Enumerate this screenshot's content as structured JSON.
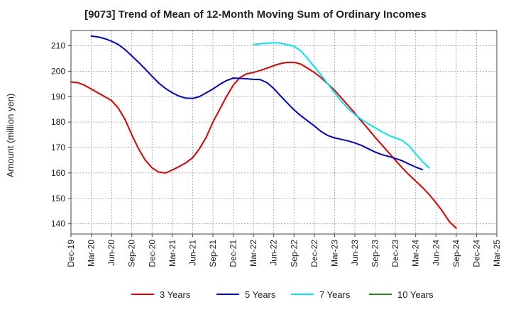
{
  "chart_data": {
    "type": "line",
    "title": "[9073]  Trend of Mean of 12-Month Moving Sum of Ordinary Incomes",
    "xlabel": "",
    "ylabel": "Amount (million yen)",
    "ylim": [
      136,
      216
    ],
    "yticks": [
      140,
      150,
      160,
      170,
      180,
      190,
      200,
      210
    ],
    "x_tick_labels": [
      "Dec-19",
      "Mar-20",
      "Jun-20",
      "Sep-20",
      "Dec-20",
      "Mar-21",
      "Jun-21",
      "Sep-21",
      "Dec-21",
      "Mar-22",
      "Jun-22",
      "Sep-22",
      "Dec-22",
      "Mar-23",
      "Jun-23",
      "Sep-23",
      "Dec-23",
      "Mar-24",
      "Jun-24",
      "Sep-24",
      "Dec-24",
      "Mar-25"
    ],
    "grid": true,
    "legend_position": "bottom",
    "series": [
      {
        "name": "3 Years",
        "color": "#dd0000",
        "start_index": 0,
        "values": [
          195.8,
          195.5,
          194.5,
          193.0,
          191.5,
          190.0,
          188.5,
          185.5,
          181.0,
          175.0,
          169.5,
          165.0,
          162.0,
          160.3,
          160.0,
          161.2,
          162.5,
          164.0,
          166.0,
          169.5,
          174.0,
          180.0,
          185.0,
          190.0,
          194.5,
          197.5,
          199.0,
          199.5,
          200.3,
          201.2,
          202.2,
          203.0,
          203.5,
          203.5,
          202.8,
          201.2,
          199.5,
          197.5,
          195.0,
          192.5,
          189.5,
          186.5,
          183.5,
          180.3,
          177.2,
          174.0,
          171.0,
          168.0,
          165.0,
          162.0,
          159.3,
          156.8,
          154.3,
          151.5,
          148.3,
          144.8,
          140.8,
          138.3
        ]
      },
      {
        "name": "5 Years",
        "color": "#0000cc",
        "start_index": 3,
        "values": [
          213.8,
          213.5,
          212.8,
          211.8,
          210.5,
          208.5,
          206.0,
          203.5,
          200.8,
          198.0,
          195.3,
          193.2,
          191.5,
          190.2,
          189.4,
          189.3,
          190.0,
          191.5,
          193.0,
          194.8,
          196.3,
          197.3,
          197.2,
          197.0,
          196.8,
          196.7,
          195.5,
          193.2,
          190.3,
          187.5,
          184.8,
          182.5,
          180.5,
          178.5,
          176.3,
          174.7,
          173.8,
          173.2,
          172.6,
          171.8,
          170.8,
          169.5,
          168.2,
          167.2,
          166.5,
          165.7,
          164.8,
          163.5,
          162.3,
          161.3
        ]
      },
      {
        "name": "7 Years",
        "color": "#00e5ee",
        "start_index": 27,
        "values": [
          210.5,
          210.8,
          211.0,
          211.2,
          211.0,
          210.5,
          209.8,
          208.0,
          205.0,
          201.8,
          198.5,
          195.0,
          191.5,
          188.2,
          185.3,
          183.0,
          181.0,
          179.3,
          177.8,
          176.2,
          174.8,
          173.8,
          172.8,
          170.7,
          167.5,
          164.5,
          162.0
        ]
      },
      {
        "name": "10 Years",
        "color": "#228b22",
        "start_index": 0,
        "values": []
      }
    ]
  }
}
